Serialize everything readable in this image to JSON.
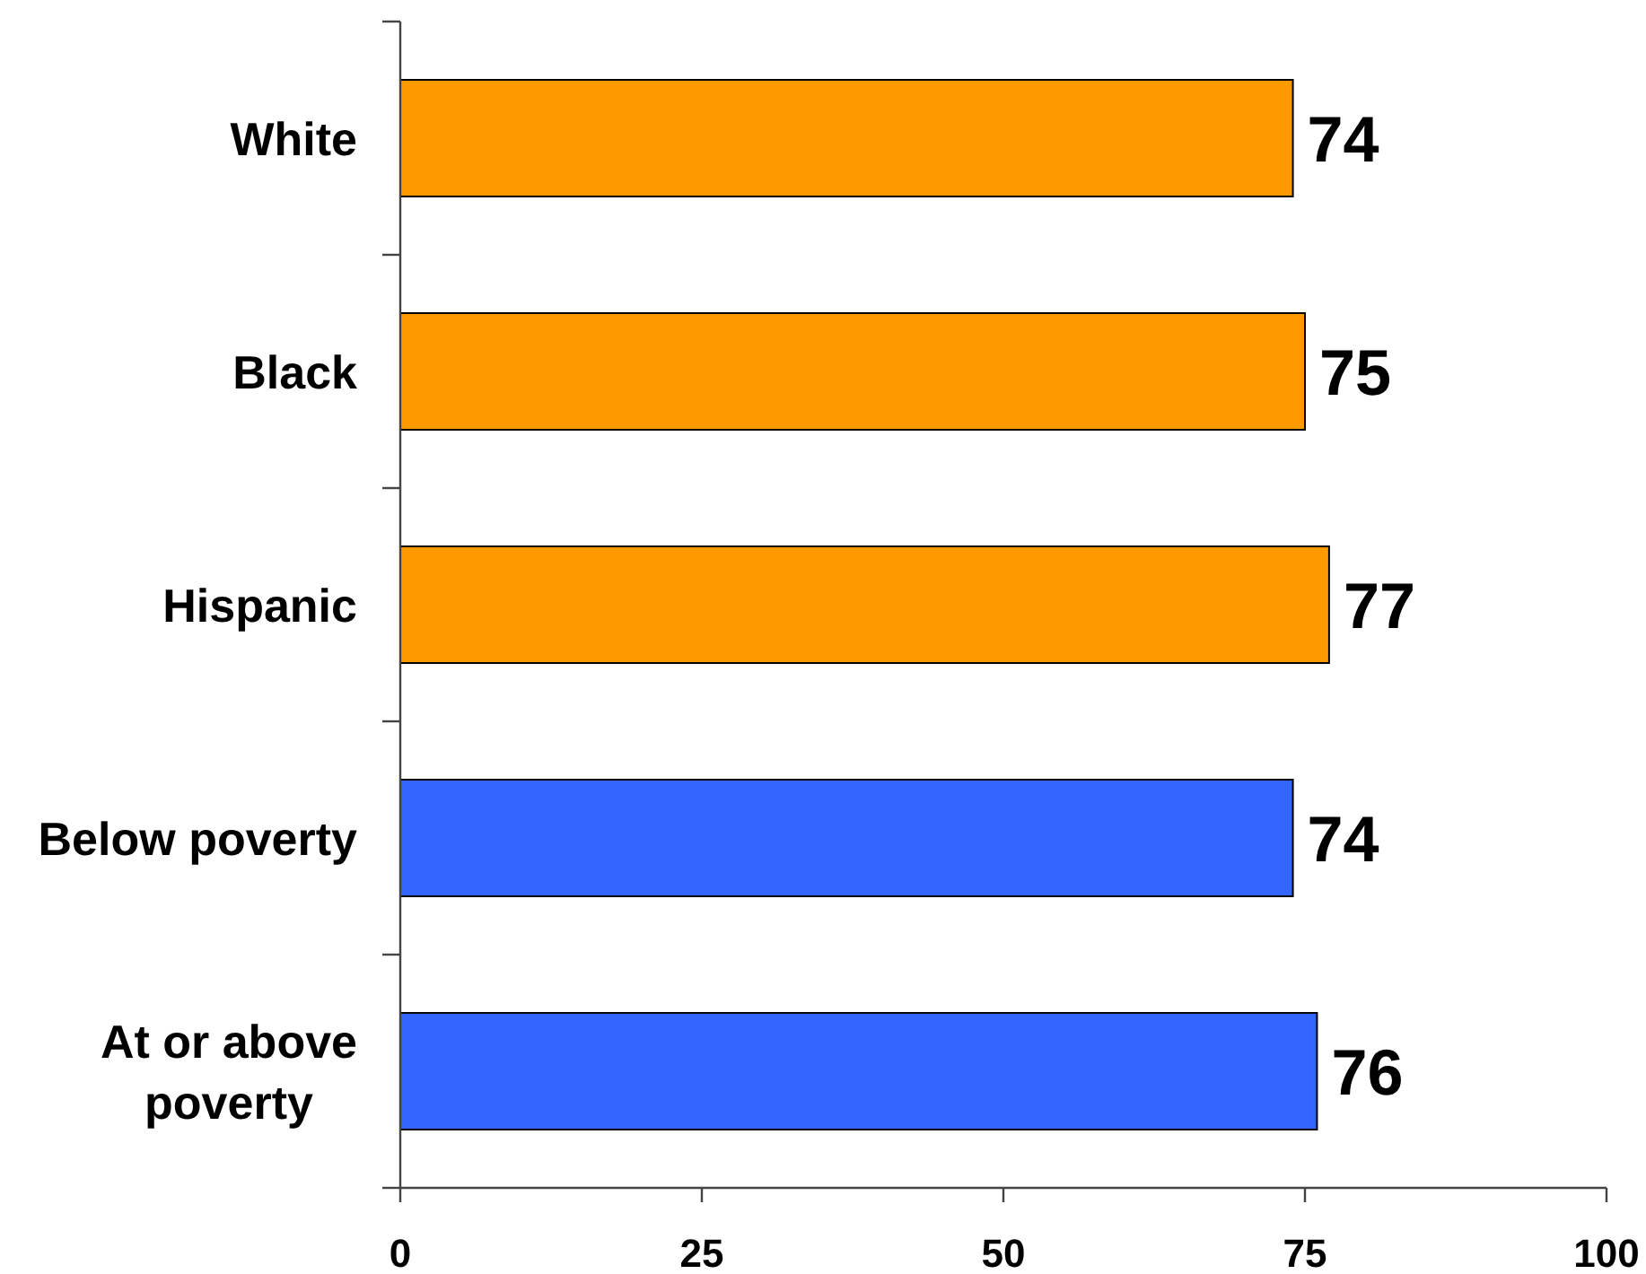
{
  "chart_data": {
    "type": "bar",
    "orientation": "horizontal",
    "categories": [
      "White",
      "Black",
      "Hispanic",
      "Below poverty",
      "At or above poverty"
    ],
    "values": [
      74,
      75,
      77,
      74,
      76
    ],
    "colors": [
      "#ff9900",
      "#ff9900",
      "#ff9900",
      "#3366ff",
      "#3366ff"
    ],
    "xlim": [
      0,
      100
    ],
    "xticks": [
      0,
      25,
      50,
      75,
      100
    ],
    "data_labels": true
  }
}
